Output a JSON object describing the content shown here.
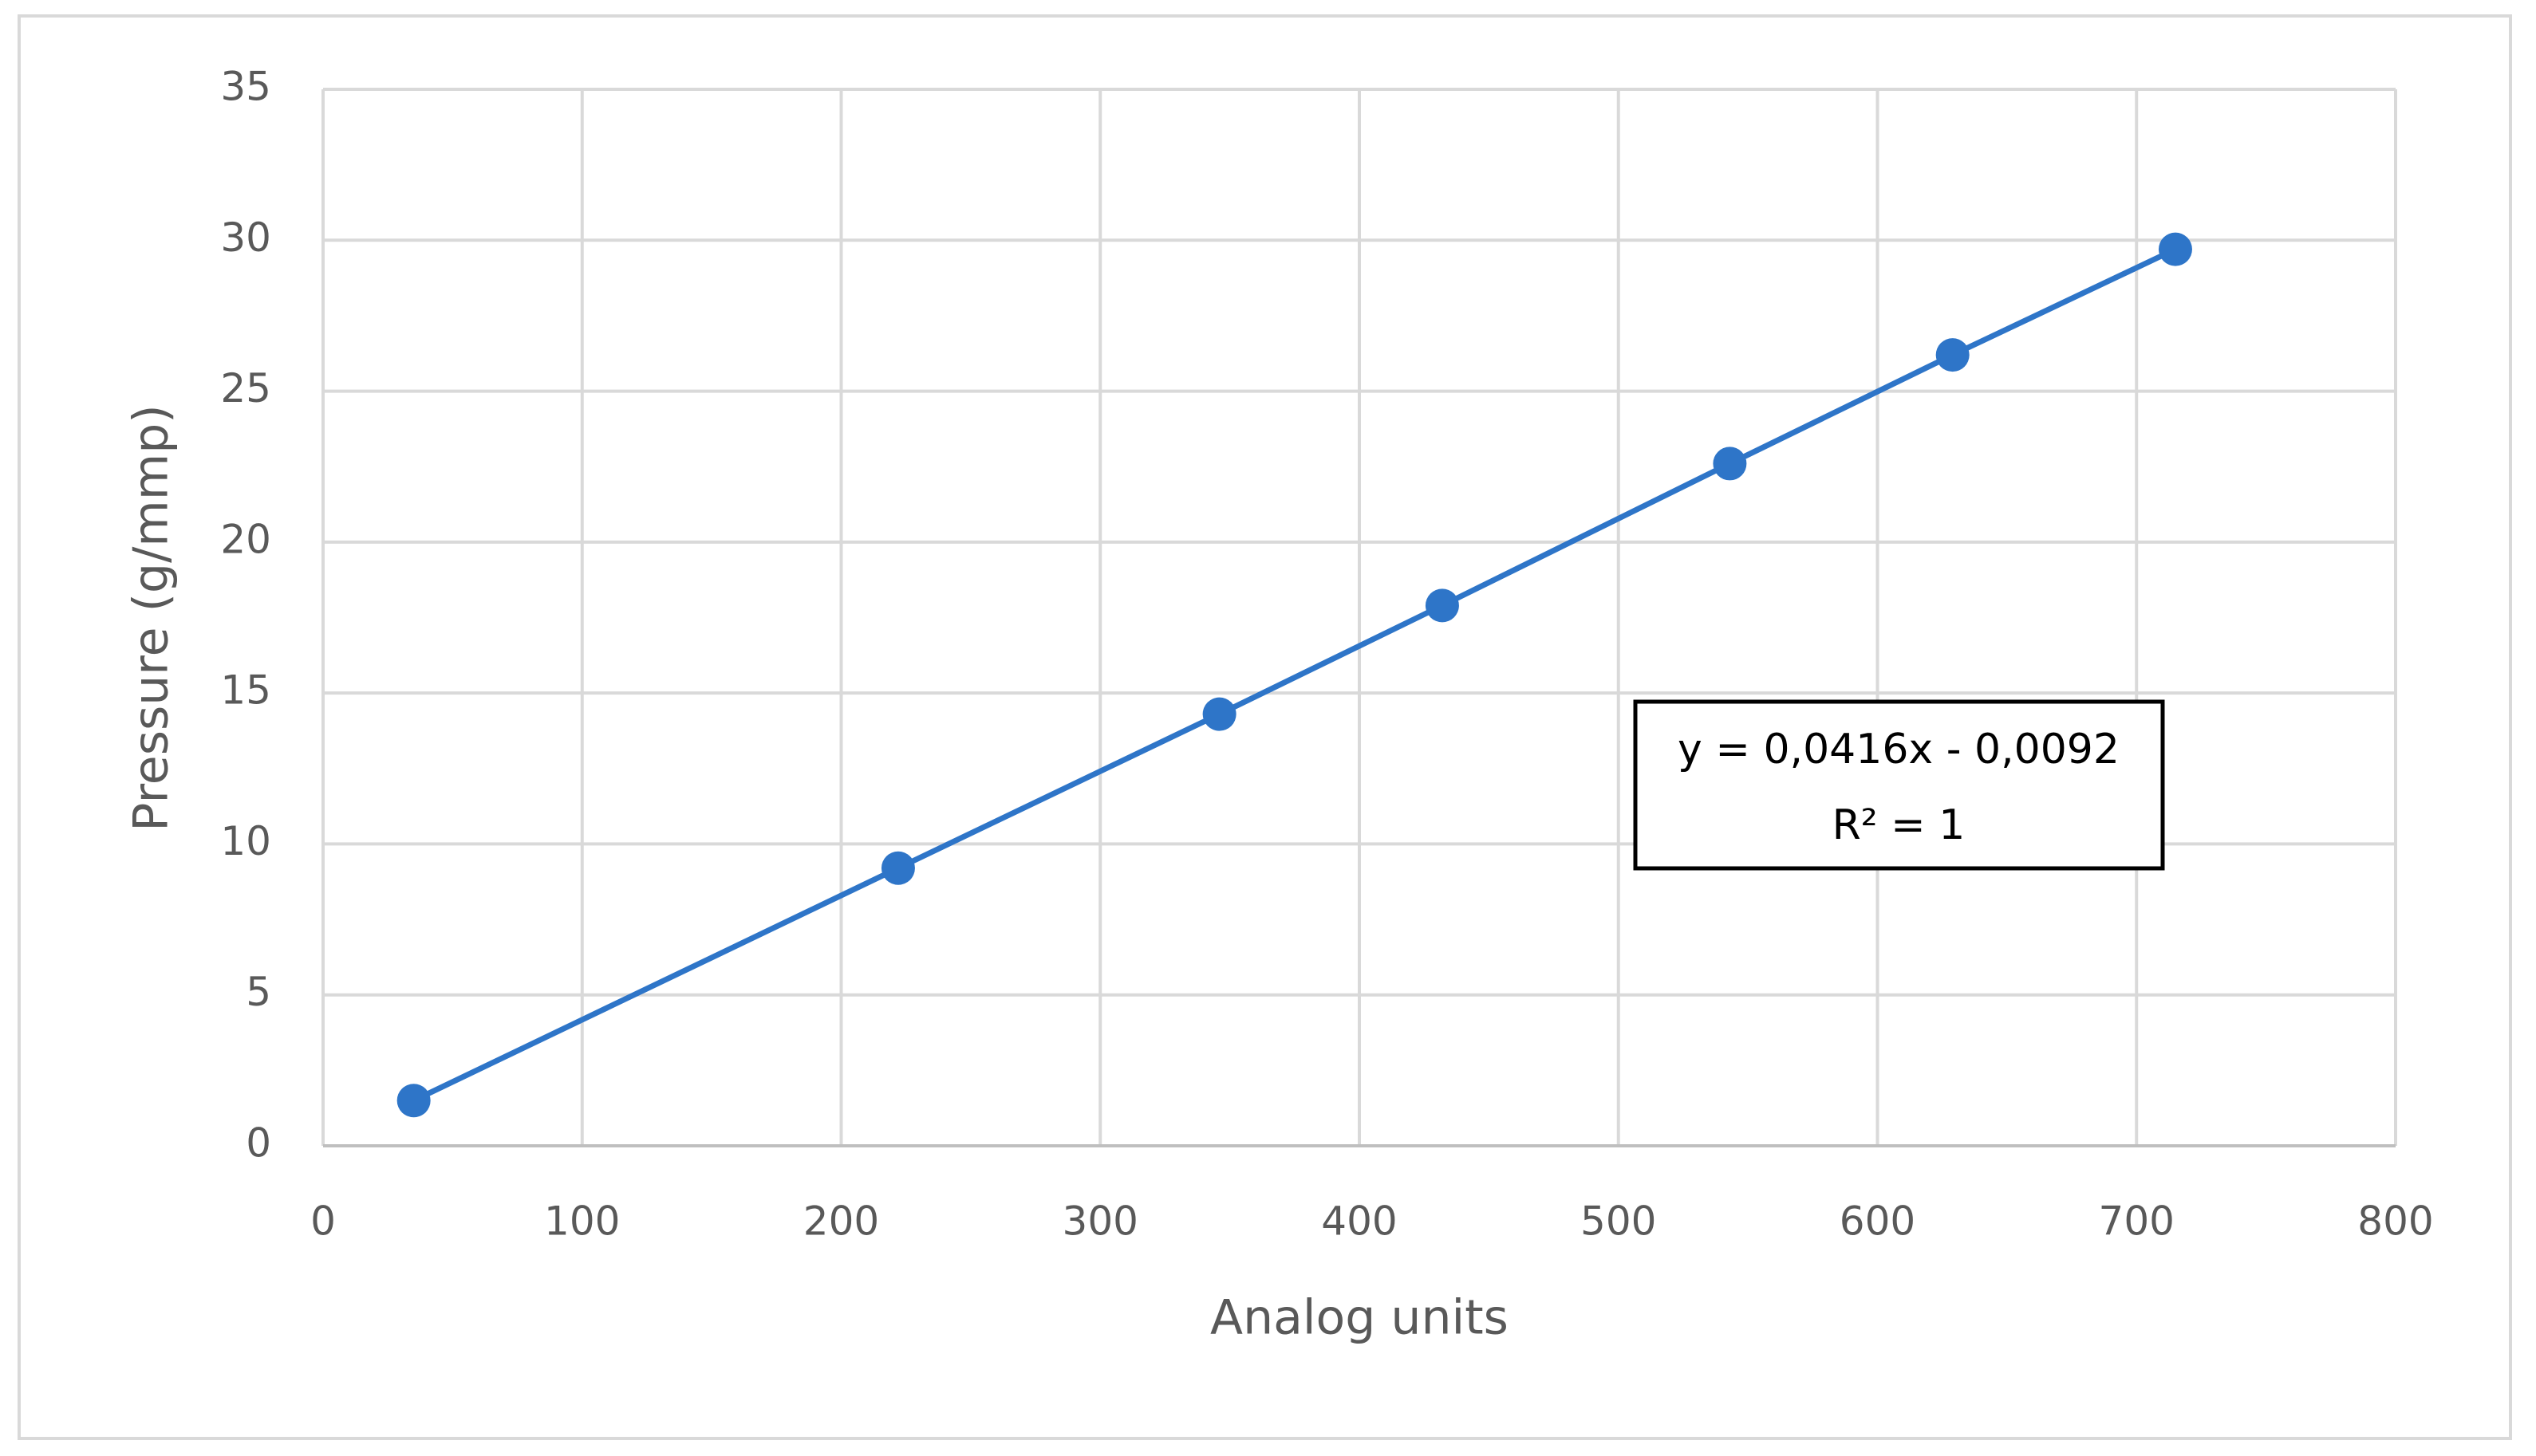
{
  "chart_data": {
    "type": "scatter",
    "x_label": "Analog units",
    "y_label": "Pressure (g/mmp)",
    "series": [
      {
        "x": [
          35,
          222,
          346,
          432,
          543,
          629,
          715
        ],
        "values": [
          1.5,
          9.2,
          14.3,
          17.9,
          22.6,
          26.2,
          29.7
        ],
        "color": "#2e75c8",
        "line": true
      }
    ],
    "xlim": [
      0,
      800
    ],
    "xticks": [
      0,
      100,
      200,
      300,
      400,
      500,
      600,
      700,
      800
    ],
    "ylim": [
      0,
      35
    ],
    "yticks": [
      0,
      5,
      10,
      15,
      20,
      25,
      30,
      35
    ],
    "grid": true,
    "annotations": [
      "y = 0,0416x - 0,0092",
      "R² = 1"
    ]
  }
}
